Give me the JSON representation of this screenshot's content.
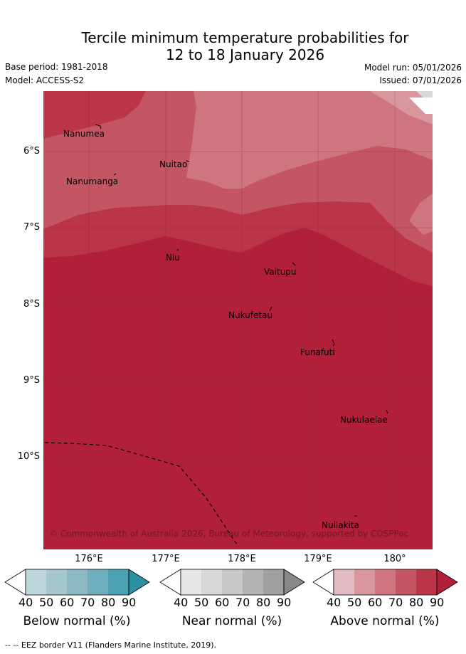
{
  "title": {
    "line1": "Tercile minimum temperature probabilities for",
    "line2": "12 to 18 January 2026"
  },
  "meta": {
    "base_period": "Base period: 1981-2018",
    "model": "Model: ACCESS-S2",
    "model_run": "Model run: 05/01/2026",
    "issued": "Issued: 07/01/2026"
  },
  "map": {
    "lat_labels": [
      "6°S",
      "7°S",
      "8°S",
      "9°S",
      "10°S"
    ],
    "lon_labels": [
      "176°E",
      "177°E",
      "178°E",
      "179°E",
      "180°"
    ],
    "places": [
      "Nanumea",
      "Nanumanga",
      "Nuitao",
      "Niu",
      "Vaitupu",
      "Nukufetau",
      "Funafuti",
      "Nukulaelae",
      "Nuilakita"
    ],
    "copyright": "© Commonwealth of Australia 2026, Bureau of Meteorology, supported by COSPPac"
  },
  "colorbars": [
    {
      "title": "Below normal (%)",
      "ticks": [
        "40",
        "50",
        "60",
        "70",
        "80",
        "90"
      ],
      "colors": [
        "#ffffff",
        "#bdd6dc",
        "#a6c7cd",
        "#8cb8c3",
        "#6fafbd",
        "#4aa2b3",
        "#2b8ea1"
      ]
    },
    {
      "title": "Near normal (%)",
      "ticks": [
        "40",
        "50",
        "60",
        "70",
        "80",
        "90"
      ],
      "colors": [
        "#ffffff",
        "#e6e6e6",
        "#d8d8d8",
        "#c8c8c8",
        "#b4b4b4",
        "#a0a0a0",
        "#898989"
      ]
    },
    {
      "title": "Above normal (%)",
      "ticks": [
        "40",
        "50",
        "60",
        "70",
        "80",
        "90"
      ],
      "colors": [
        "#ffffff",
        "#e3bcc3",
        "#d8979f",
        "#cf757f",
        "#c45563",
        "#bb3548",
        "#b21f39"
      ]
    }
  ],
  "footer": {
    "legend_text": "-- EEZ border V11 (Flanders Marine Institute, 2019)."
  }
}
